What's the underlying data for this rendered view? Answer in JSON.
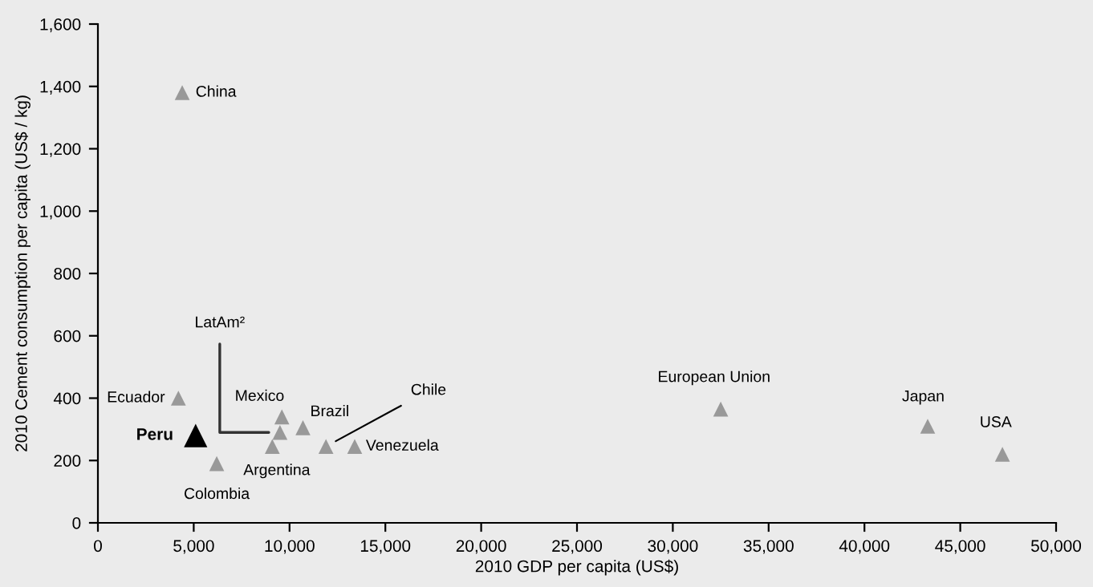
{
  "chart_data": {
    "type": "scatter",
    "xlabel": "2010 GDP per capita (US$)",
    "ylabel": "2010 Cement consumption per capita (US$ / kg)",
    "marker": "triangle",
    "grid": false,
    "legend": false,
    "xlim": [
      0,
      50000
    ],
    "xticks": [
      {
        "value": 0,
        "label": "0"
      },
      {
        "value": 5000,
        "label": "5,000"
      },
      {
        "value": 10000,
        "label": "10,000"
      },
      {
        "value": 15000,
        "label": "15,000"
      },
      {
        "value": 20000,
        "label": "20,000"
      },
      {
        "value": 25000,
        "label": "25,000"
      },
      {
        "value": 30000,
        "label": "30,000"
      },
      {
        "value": 35000,
        "label": "35,000"
      },
      {
        "value": 40000,
        "label": "40,000"
      },
      {
        "value": 45000,
        "label": "45,000"
      },
      {
        "value": 50000,
        "label": "50,000"
      }
    ],
    "ylim": [
      0,
      1600
    ],
    "yticks": [
      {
        "value": 0,
        "label": "0"
      },
      {
        "value": 200,
        "label": "200"
      },
      {
        "value": 400,
        "label": "400"
      },
      {
        "value": 600,
        "label": "600"
      },
      {
        "value": 800,
        "label": "800"
      },
      {
        "value": 1000,
        "label": "1,000"
      },
      {
        "value": 1200,
        "label": "1,200"
      },
      {
        "value": 1400,
        "label": "1,400"
      },
      {
        "value": 1600,
        "label": "1,600"
      }
    ],
    "series": [
      {
        "color": "#999999",
        "x": [
          4400,
          4200,
          9600,
          9500,
          10700,
          11900,
          13400,
          9100,
          6200,
          32500,
          43300,
          47200
        ],
        "values": [
          1380,
          400,
          340,
          290,
          305,
          245,
          245,
          245,
          190,
          365,
          310,
          220
        ]
      },
      {
        "name": "Peru",
        "color": "#000000",
        "x": [
          5100
        ],
        "values": [
          280
        ]
      }
    ],
    "annotations": [
      {
        "text": "China",
        "x": 4400,
        "y": 1380
      },
      {
        "text": "Ecuador",
        "x": 4200,
        "y": 400
      },
      {
        "text": "Mexico",
        "x": 9600,
        "y": 340
      },
      {
        "text": "LatAm²",
        "x": 9500,
        "y": 290
      },
      {
        "text": "Brazil",
        "x": 10700,
        "y": 305
      },
      {
        "text": "Chile",
        "x": 11900,
        "y": 245
      },
      {
        "text": "Venezuela",
        "x": 13400,
        "y": 245
      },
      {
        "text": "Argentina",
        "x": 9100,
        "y": 245
      },
      {
        "text": "Colombia",
        "x": 6200,
        "y": 190
      },
      {
        "text": "European Union",
        "x": 32500,
        "y": 365
      },
      {
        "text": "Japan",
        "x": 43300,
        "y": 310
      },
      {
        "text": "USA",
        "x": 47200,
        "y": 220
      }
    ]
  }
}
